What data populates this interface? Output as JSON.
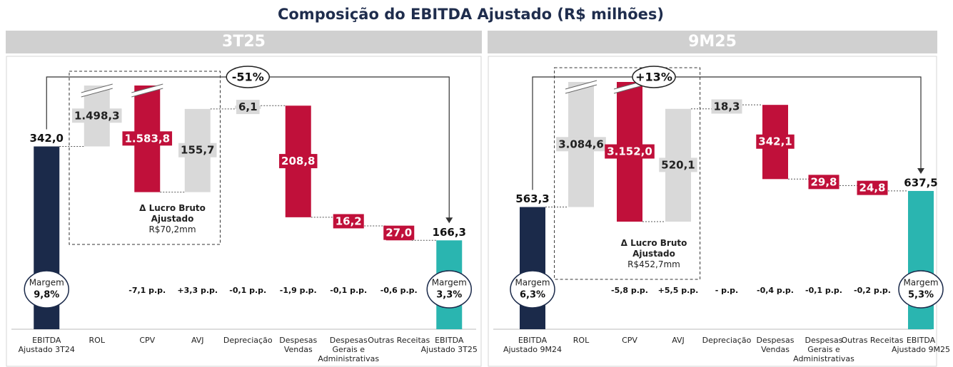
{
  "title": "Composição do EBITDA Ajustado (R$ milhões)",
  "chart_data": [
    {
      "type": "waterfall",
      "title": "3T25",
      "categories": [
        "EBITDA Ajustado 3T24",
        "ROL",
        "CPV",
        "AVJ",
        "Depreciação",
        "Despesas Vendas",
        "Despesas Gerais e Administrativas",
        "Outras Receitas",
        "EBITDA Ajustado 3T25"
      ],
      "measure": [
        "total",
        "increase",
        "decrease",
        "increase",
        "increase",
        "decrease",
        "decrease",
        "decrease",
        "total"
      ],
      "values": [
        342.0,
        1498.3,
        1583.8,
        155.7,
        6.1,
        208.8,
        16.2,
        27.0,
        166.3
      ],
      "value_labels": [
        "342,0",
        "1.498,3",
        "1.583,8",
        "155,7",
        "6,1",
        "208,8",
        "16,2",
        "27,0",
        "166,3"
      ],
      "colors": [
        "#1b2a4a",
        "#d9d9d9",
        "#c0103a",
        "#d9d9d9",
        "#d9d9d9",
        "#c0103a",
        "#c0103a",
        "#c0103a",
        "#2ab5b0"
      ],
      "ylim": [
        0,
        456
      ],
      "axis_break": true,
      "margin_title": "Margem",
      "margins": [
        "9,8%",
        "3,3%"
      ],
      "pp_changes": [
        null,
        null,
        "-7,1 p.p.",
        "+3,3 p.p.",
        "-0,1 p.p.",
        "-1,9 p.p.",
        "-0,1 p.p.",
        "-0,6 p.p.",
        null
      ],
      "box_title": "Δ Lucro Bruto Ajustado",
      "box_value": "R$70,2mm",
      "growth": "-51%"
    },
    {
      "type": "waterfall",
      "title": "9M25",
      "categories": [
        "EBITDA Ajustado 9M24",
        "ROL",
        "CPV",
        "AVJ",
        "Depreciação",
        "Despesas Vendas",
        "Despesas Gerais e Administrativas",
        "Outras Receitas",
        "EBITDA Ajustado 9M25"
      ],
      "measure": [
        "total",
        "increase",
        "decrease",
        "increase",
        "increase",
        "decrease",
        "decrease",
        "decrease",
        "total"
      ],
      "values": [
        563.3,
        3084.6,
        3152.0,
        520.1,
        18.3,
        342.1,
        29.8,
        24.8,
        637.5
      ],
      "value_labels": [
        "563,3",
        "3.084,6",
        "3.152,0",
        "520,1",
        "18,3",
        "342,1",
        "29,8",
        "24,8",
        "637,5"
      ],
      "colors": [
        "#1b2a4a",
        "#d9d9d9",
        "#c0103a",
        "#d9d9d9",
        "#d9d9d9",
        "#c0103a",
        "#c0103a",
        "#c0103a",
        "#2ab5b0"
      ],
      "ylim": [
        0,
        1140
      ],
      "axis_break": true,
      "margin_title": "Margem",
      "margins": [
        "6,3%",
        "5,3%"
      ],
      "pp_changes": [
        null,
        null,
        "-5,8 p.p.",
        "+5,5 p.p.",
        "- p.p.",
        "-0,4 p.p.",
        "-0,1 p.p.",
        "-0,2 p.p.",
        null
      ],
      "box_title": "Δ Lucro Bruto Ajustado",
      "box_value": "R$452,7mm",
      "growth": "+13%"
    }
  ]
}
